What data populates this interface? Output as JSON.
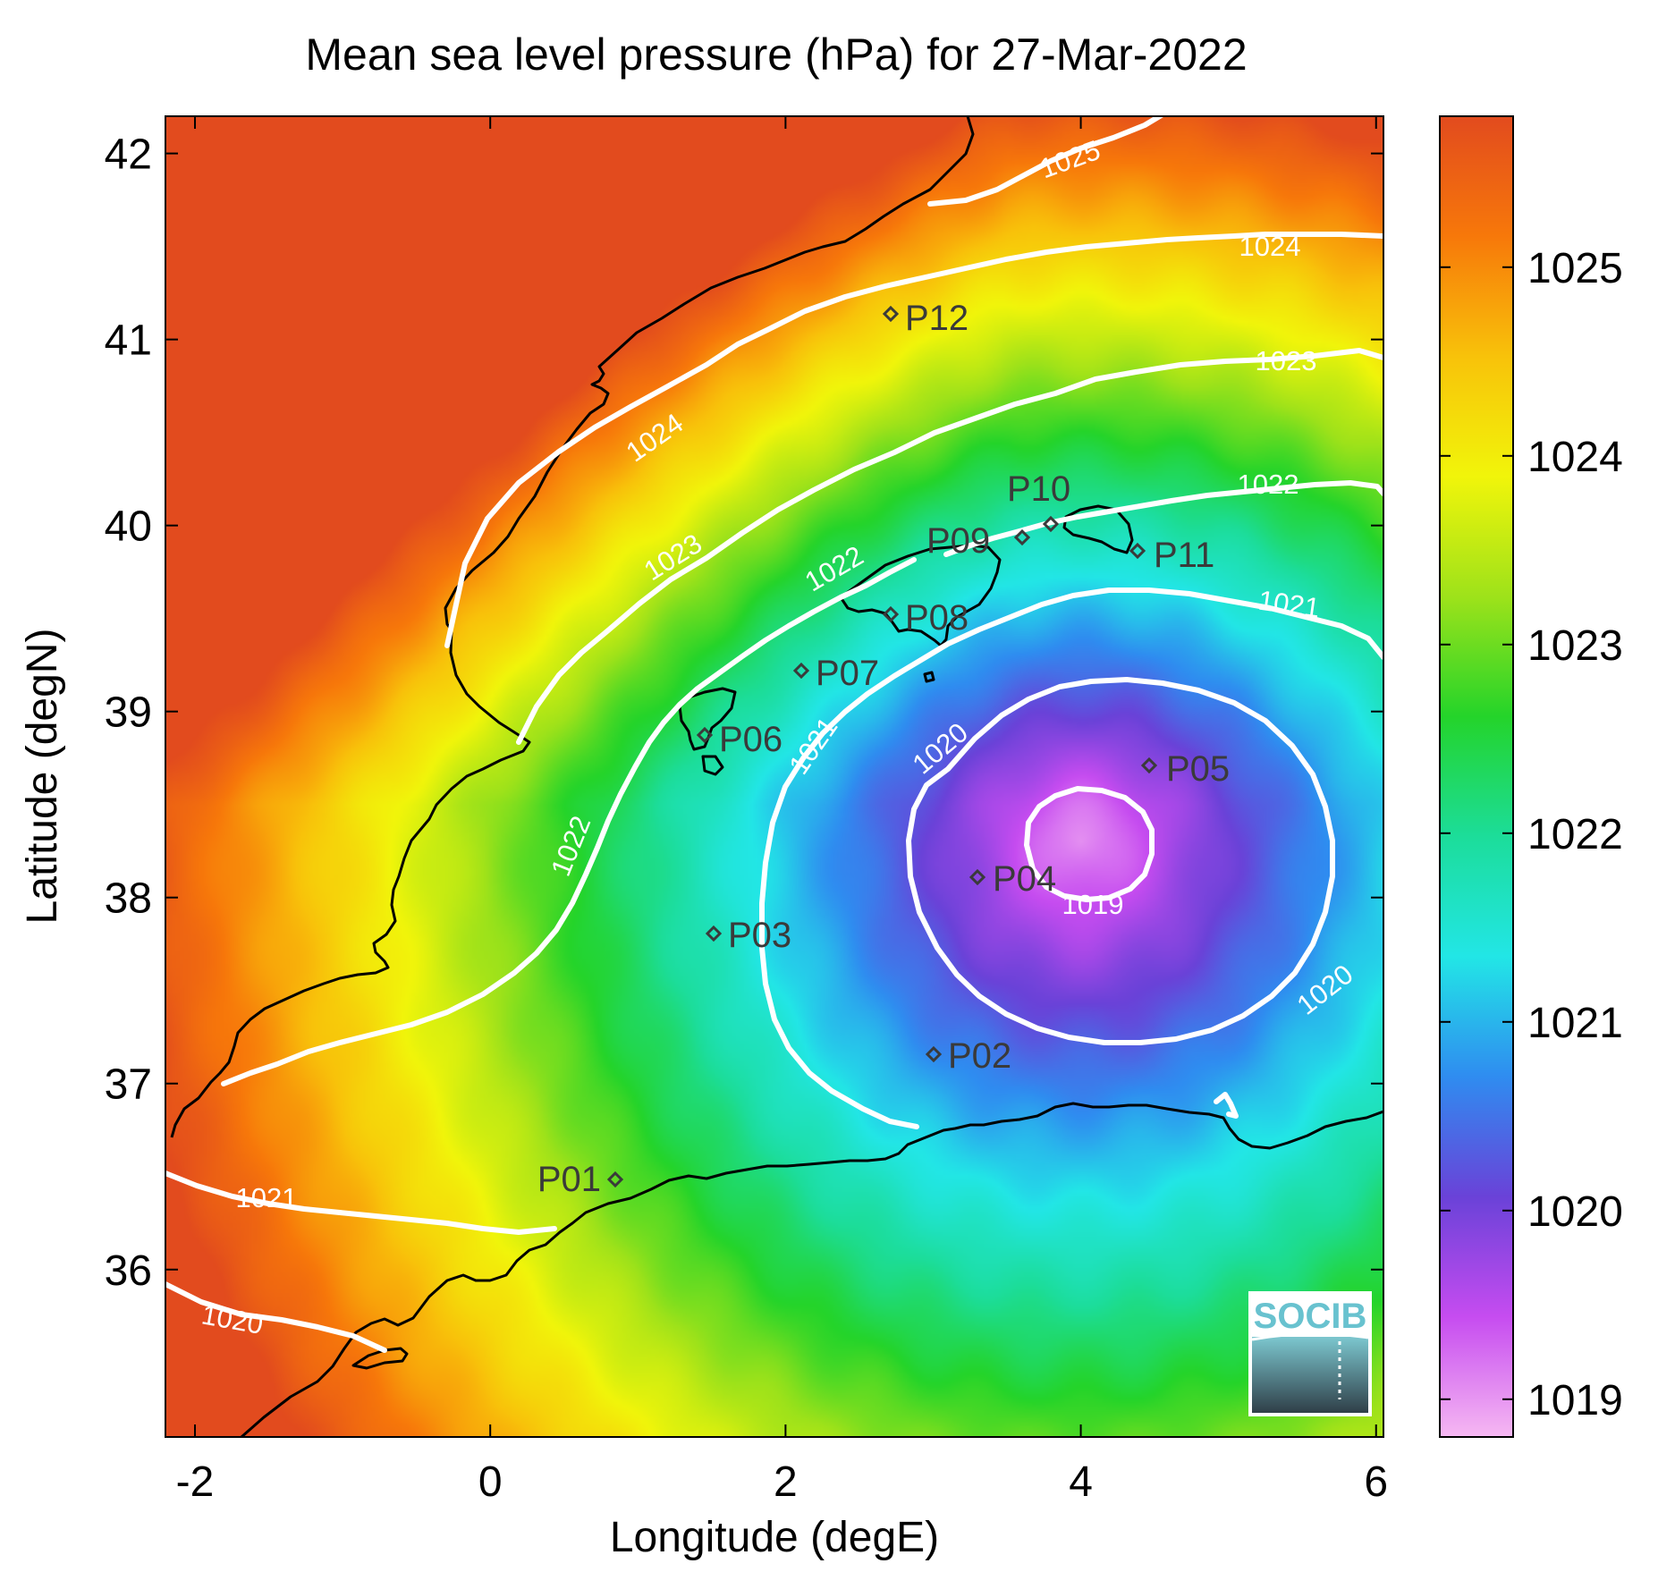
{
  "title": "Mean sea level pressure (hPa) for 27-Mar-2022",
  "xlabel": "Longitude (degE)",
  "ylabel": "Latitude (degN)",
  "x_ticks": [
    "-2",
    "0",
    "2",
    "4",
    "6"
  ],
  "y_ticks": [
    "36",
    "37",
    "38",
    "39",
    "40",
    "41",
    "42"
  ],
  "colorbar": {
    "ticks": [
      "1019",
      "1020",
      "1021",
      "1022",
      "1023",
      "1024",
      "1025"
    ],
    "range": [
      1018.8,
      1025.8
    ],
    "colors": [
      "#f6b8f2",
      "#c64cf0",
      "#6a42d8",
      "#2f8cf0",
      "#22e6e6",
      "#1cdd9a",
      "#24d42a",
      "#9ee21a",
      "#f1f50a",
      "#f8c20a",
      "#f7780a",
      "#e24b1e"
    ]
  },
  "contour_labels": [
    "1025",
    "1024",
    "1024",
    "1023",
    "1023",
    "1022",
    "1022",
    "1022",
    "1021",
    "1021",
    "1021",
    "1020",
    "1020",
    "1019",
    "1020"
  ],
  "stations": [
    "P01",
    "P02",
    "P03",
    "P04",
    "P05",
    "P06",
    "P07",
    "P08",
    "P09",
    "P10",
    "P11",
    "P12"
  ],
  "logo": "SOCIB",
  "chart_data": {
    "type": "heatmap",
    "title": "Mean sea level pressure (hPa) for 27-Mar-2022",
    "xlabel": "Longitude (degE)",
    "ylabel": "Latitude (degN)",
    "xlim": [
      -2.2,
      6.05
    ],
    "ylim": [
      35.1,
      42.2
    ],
    "colorbar_range": [
      1018.8,
      1025.8
    ],
    "low_center": {
      "lon": 4.0,
      "lat": 38.3,
      "value": 1019
    },
    "contour_levels": [
      1019,
      1020,
      1021,
      1022,
      1023,
      1024,
      1025
    ],
    "stations": [
      {
        "name": "P01",
        "lon": 0.85,
        "lat": 36.5
      },
      {
        "name": "P02",
        "lon": 3.0,
        "lat": 37.15
      },
      {
        "name": "P03",
        "lon": 1.52,
        "lat": 37.8
      },
      {
        "name": "P04",
        "lon": 3.3,
        "lat": 38.1
      },
      {
        "name": "P05",
        "lon": 4.45,
        "lat": 38.7
      },
      {
        "name": "P06",
        "lon": 1.48,
        "lat": 38.85
      },
      {
        "name": "P07",
        "lon": 2.12,
        "lat": 39.2
      },
      {
        "name": "P08",
        "lon": 2.72,
        "lat": 39.5
      },
      {
        "name": "P09",
        "lon": 3.62,
        "lat": 39.92
      },
      {
        "name": "P10",
        "lon": 3.82,
        "lat": 40.0
      },
      {
        "name": "P11",
        "lon": 4.38,
        "lat": 39.85
      },
      {
        "name": "P12",
        "lon": 2.72,
        "lat": 41.1
      }
    ]
  }
}
